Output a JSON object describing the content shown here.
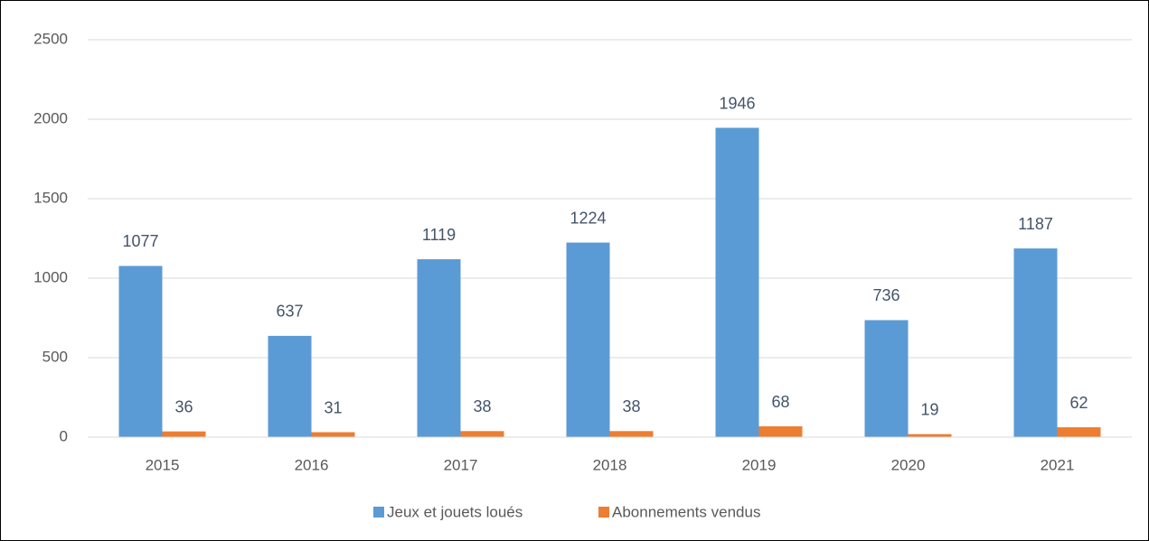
{
  "chart_data": {
    "type": "bar",
    "categories": [
      "2015",
      "2016",
      "2017",
      "2018",
      "2019",
      "2020",
      "2021"
    ],
    "series": [
      {
        "name": "Jeux et jouets loués",
        "color": "#5b9bd5",
        "values": [
          1077,
          637,
          1119,
          1224,
          1946,
          736,
          1187
        ]
      },
      {
        "name": "Abonnements vendus",
        "color": "#ed7d31",
        "values": [
          36,
          31,
          38,
          38,
          68,
          19,
          62
        ]
      }
    ],
    "ylim": [
      0,
      2500
    ],
    "yticks": [
      0,
      500,
      1000,
      1500,
      2000,
      2500
    ],
    "grid": true,
    "legend": "bottom"
  }
}
